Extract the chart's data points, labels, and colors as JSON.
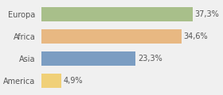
{
  "categories": [
    "Europa",
    "Africa",
    "Asia",
    "America"
  ],
  "values": [
    37.3,
    34.6,
    23.3,
    4.9
  ],
  "labels": [
    "37,3%",
    "34,6%",
    "23,3%",
    "4,9%"
  ],
  "bar_colors": [
    "#a8bf8a",
    "#e8b882",
    "#7b9dc2",
    "#f0d078"
  ],
  "background_color": "#f0f0f0",
  "xlim": [
    0,
    44
  ],
  "bar_height": 0.62,
  "label_fontsize": 7.0,
  "tick_fontsize": 7.0
}
